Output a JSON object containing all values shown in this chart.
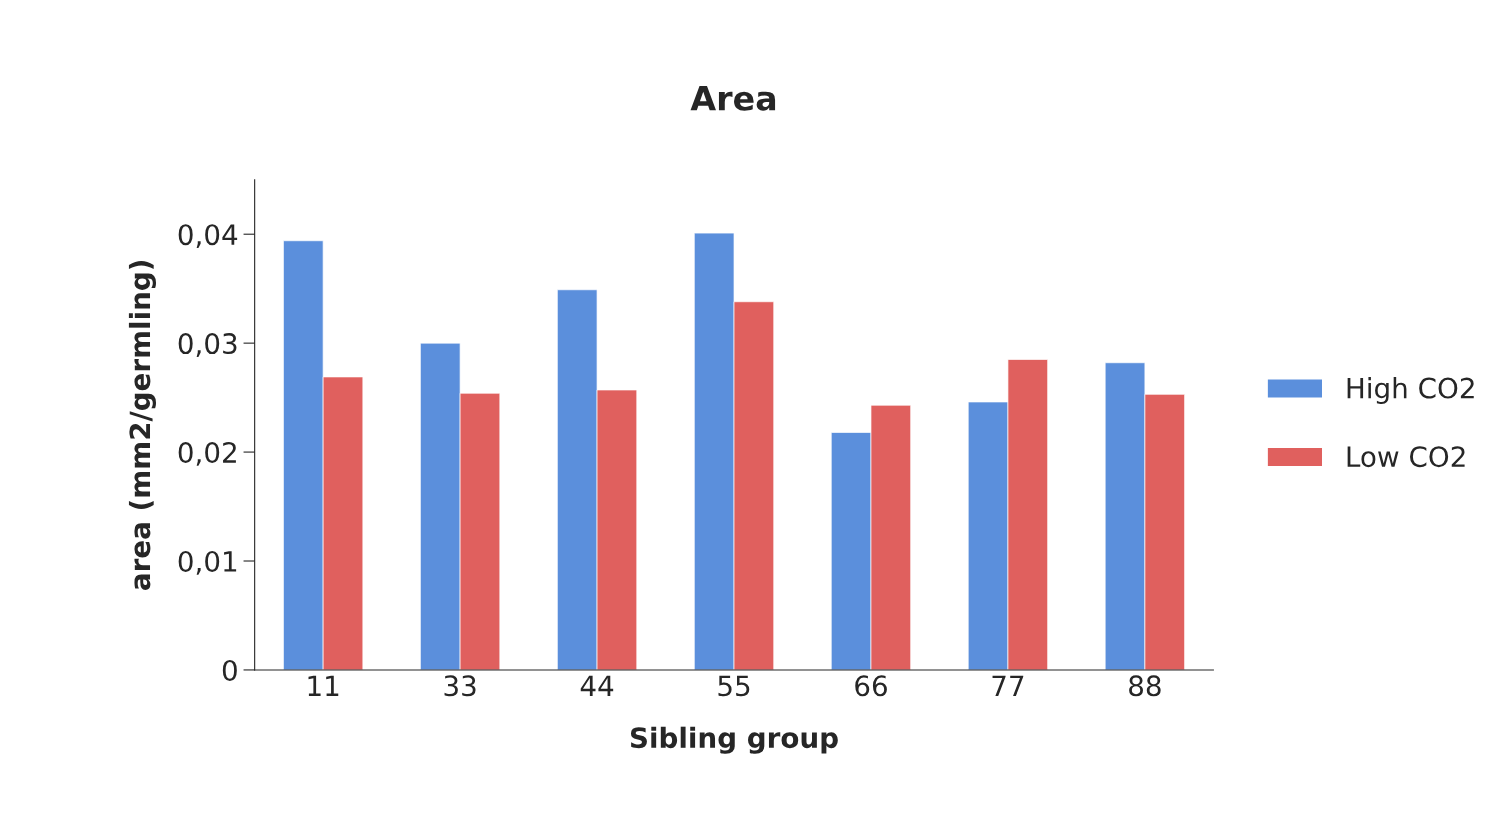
{
  "chart_data": {
    "type": "bar",
    "title": "Area",
    "xlabel": "Sibling group",
    "ylabel": "area (mm2/germling)",
    "categories": [
      "11",
      "33",
      "44",
      "55",
      "66",
      "77",
      "88"
    ],
    "series": [
      {
        "name": "High CO2",
        "color": "#5b8fdc",
        "values": [
          0.0394,
          0.03,
          0.0349,
          0.0401,
          0.0218,
          0.0246,
          0.0282
        ]
      },
      {
        "name": "Low CO2",
        "color": "#e0605e",
        "values": [
          0.0269,
          0.0254,
          0.0257,
          0.0338,
          0.0243,
          0.0285,
          0.0253
        ]
      }
    ],
    "ylim": [
      0,
      0.045
    ],
    "yticks": [
      {
        "value": 0,
        "label": "0"
      },
      {
        "value": 0.01,
        "label": "0,01"
      },
      {
        "value": 0.02,
        "label": "0,02"
      },
      {
        "value": 0.03,
        "label": "0,03"
      },
      {
        "value": 0.04,
        "label": "0,04"
      }
    ],
    "grid": false,
    "legend": "right"
  }
}
